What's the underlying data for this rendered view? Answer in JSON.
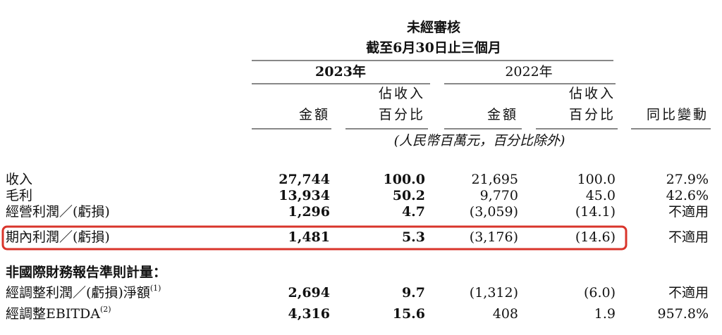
{
  "header": {
    "title": "未經審核",
    "subtitle": "截至6月30日止三個月"
  },
  "years": [
    "2023年",
    "2022年"
  ],
  "columns": [
    [
      "金額"
    ],
    [
      "佔收入",
      "百分比"
    ],
    [
      "金額"
    ],
    [
      "佔收入",
      "百分比"
    ],
    [
      "同比變動"
    ]
  ],
  "unit_note": "(人民幣百萬元，百分比除外)",
  "rows": [
    {
      "label": "收入",
      "values": [
        "27,744",
        "100.0",
        "21,695",
        "100.0",
        "27.9%"
      ]
    },
    {
      "label": "毛利",
      "values": [
        "13,934",
        "50.2",
        "9,770",
        "45.0",
        "42.6%"
      ]
    },
    {
      "label": "經營利潤／(虧損)",
      "values": [
        "1,296",
        "4.7",
        "(3,059)",
        "(14.1)",
        "不適用"
      ]
    },
    {
      "label": "期內利潤／(虧損)",
      "values": [
        "1,481",
        "5.3",
        "(3,176)",
        "(14.6)",
        "不適用"
      ]
    }
  ],
  "section_title": "非國際財務報告準則計量：",
  "section_rows": [
    {
      "label": "經調整利潤／(虧損)淨額",
      "note": "(1)",
      "values": [
        "2,694",
        "9.7",
        "(1,312)",
        "(6.0)",
        "不適用"
      ]
    },
    {
      "label": "經調整EBITDA",
      "note": "(2)",
      "values": [
        "4,316",
        "15.6",
        "408",
        "1.9",
        "957.8%"
      ]
    }
  ]
}
